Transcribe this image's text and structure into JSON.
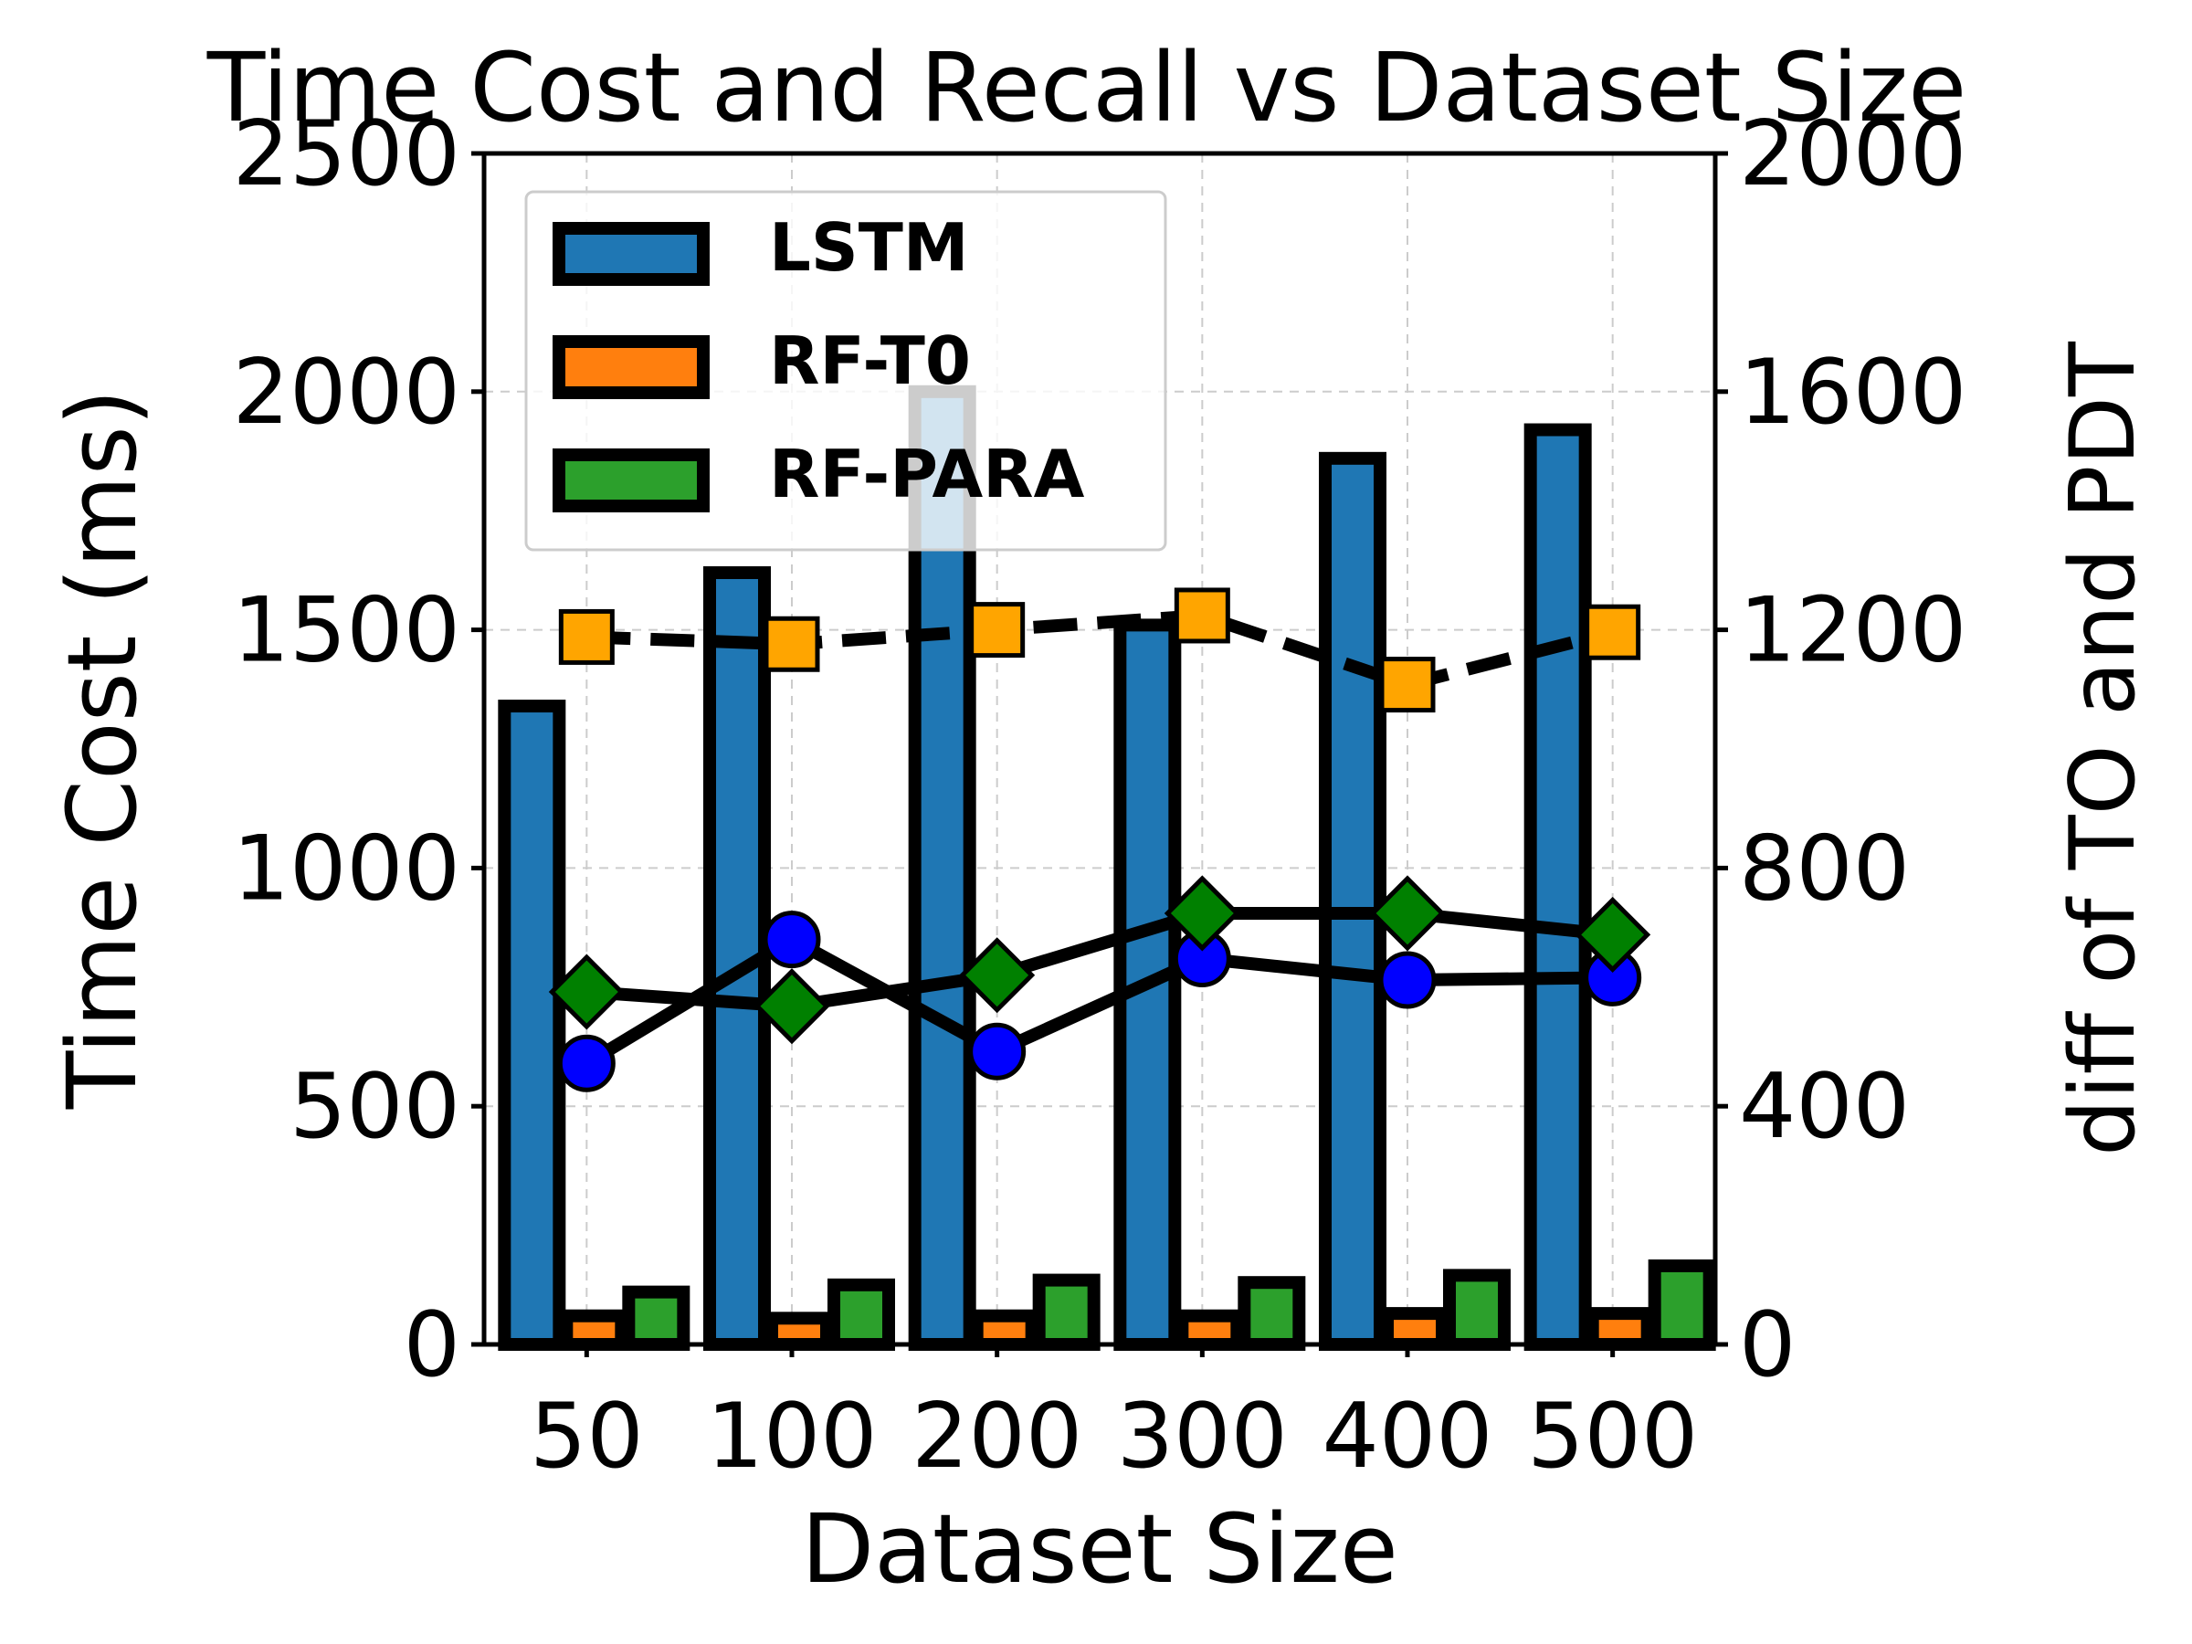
{
  "chart_data": {
    "type": "bar",
    "title": "Time Cost and Recall vs Dataset Size",
    "xlabel": "Dataset Size",
    "ylabel": "Time Cost (ms)",
    "y2label": "diff of TO and PDT",
    "categories": [
      "50",
      "100",
      "200",
      "300",
      "400",
      "500"
    ],
    "ylim": [
      0,
      2500
    ],
    "y2lim": [
      0,
      2000
    ],
    "yticks": [
      "0",
      "500",
      "1000",
      "1500",
      "2000",
      "2500"
    ],
    "y2ticks": [
      "0",
      "400",
      "800",
      "1200",
      "1600",
      "2000"
    ],
    "grid": true,
    "legend_position": "upper-left",
    "series": [
      {
        "name": "LSTM",
        "values": [
          1340,
          1620,
          2000,
          1510,
          1860,
          1920
        ],
        "color": "#1f77b4"
      },
      {
        "name": "RF-T0",
        "values": [
          60,
          55,
          60,
          60,
          65,
          65
        ],
        "color": "#ff7f0e"
      },
      {
        "name": "RF-PARA",
        "values": [
          110,
          125,
          135,
          130,
          145,
          165
        ],
        "color": "#2ca02c"
      }
    ],
    "line_series": [
      {
        "axis": "left",
        "marker": "square",
        "style": "dashed",
        "color": "#ffa500",
        "values": [
          1485,
          1470,
          1500,
          1530,
          1385,
          1495
        ]
      },
      {
        "axis": "left",
        "marker": "circle",
        "style": "solid",
        "color": "#0000ff",
        "values": [
          590,
          850,
          615,
          810,
          765,
          770
        ]
      },
      {
        "axis": "left",
        "marker": "diamond",
        "style": "solid",
        "color": "#008000",
        "values": [
          740,
          710,
          775,
          905,
          905,
          860
        ]
      }
    ]
  }
}
